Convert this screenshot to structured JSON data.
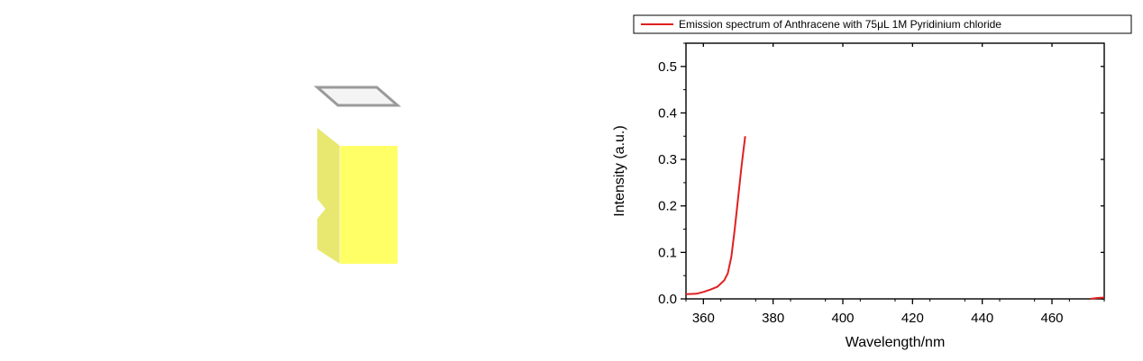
{
  "colors": {
    "series": "#e02020",
    "cuvette_front": "#ffff66",
    "cuvette_side": "#e8e870",
    "cuvette_cap": "#9a9a9a"
  },
  "chart_data": {
    "type": "line",
    "xlabel": "Wavelength/nm",
    "ylabel": "Intensity (a.u.)",
    "xlim": [
      355,
      475
    ],
    "ylim": [
      0,
      0.55
    ],
    "x_ticks": [
      360,
      380,
      400,
      420,
      440,
      460
    ],
    "y_ticks": [
      0.0,
      0.1,
      0.2,
      0.3,
      0.4,
      0.5
    ],
    "x_tick_labels": [
      "360",
      "380",
      "400",
      "420",
      "440",
      "460"
    ],
    "y_tick_labels": [
      "0.0",
      "0.1",
      "0.2",
      "0.3",
      "0.4",
      "0.5"
    ],
    "legend": {
      "placement": "top",
      "label": "Emission spectrum of Anthracene with 75μL 1M Pyridinium chloride"
    },
    "series": [
      {
        "name": "Emission spectrum of Anthracene with 75μL 1M Pyridinium chloride",
        "color": "#e02020",
        "segments": [
          {
            "x": [
              355,
              358,
              360,
              362,
              364,
              366,
              367,
              368,
              369,
              370,
              371,
              372
            ],
            "y": [
              0.01,
              0.011,
              0.015,
              0.02,
              0.026,
              0.04,
              0.055,
              0.09,
              0.15,
              0.22,
              0.29,
              0.35
            ]
          },
          {
            "x": [
              471,
              473,
              475
            ],
            "y": [
              0.0,
              0.002,
              0.003
            ]
          }
        ]
      }
    ]
  }
}
